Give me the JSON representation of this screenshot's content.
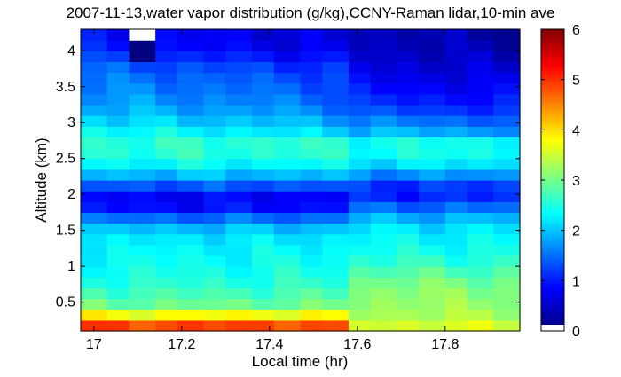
{
  "chart_data": {
    "type": "heatmap",
    "title": "2007-11-13,water vapor distribution (g/kg),CCNY-Raman lidar,10-min ave",
    "xlabel": "Local time (hr)",
    "ylabel": "Altitude (km)",
    "xlim": [
      16.97,
      17.97
    ],
    "ylim": [
      0.1,
      4.3
    ],
    "x_ticks": [
      "17",
      "17.2",
      "17.4",
      "17.6",
      "17.8"
    ],
    "x_tick_values": [
      17,
      17.2,
      17.4,
      17.6,
      17.8
    ],
    "y_ticks": [
      "0.5",
      "1",
      "1.5",
      "2",
      "2.5",
      "3",
      "3.5",
      "4"
    ],
    "y_tick_values": [
      0.5,
      1,
      1.5,
      2,
      2.5,
      3,
      3.5,
      4
    ],
    "colorbar": {
      "min": 0,
      "max": 6,
      "ticks": [
        "0",
        "1",
        "2",
        "3",
        "4",
        "5",
        "6"
      ],
      "tick_values": [
        0,
        1,
        2,
        3,
        4,
        5,
        6
      ],
      "colormap": "jet",
      "missing_color": "#ffffff"
    },
    "x_columns_hr": [
      16.97,
      17.03,
      17.08,
      17.14,
      17.19,
      17.25,
      17.3,
      17.36,
      17.41,
      17.47,
      17.52,
      17.58,
      17.63,
      17.69,
      17.74,
      17.8,
      17.85,
      17.91,
      17.97
    ],
    "y_rows_km": [
      0.1,
      0.25,
      0.4,
      0.55,
      0.7,
      0.85,
      1.0,
      1.15,
      1.3,
      1.45,
      1.6,
      1.75,
      1.9,
      2.05,
      2.2,
      2.35,
      2.5,
      2.65,
      2.8,
      2.95,
      3.1,
      3.25,
      3.4,
      3.55,
      3.7,
      3.85,
      4.0,
      4.15,
      4.3
    ],
    "profiles_g_per_kg": {
      "altitude_km": [
        0.1,
        0.25,
        0.4,
        0.55,
        0.7,
        0.85,
        1.0,
        1.15,
        1.3,
        1.45,
        1.6,
        1.75,
        1.9,
        2.05,
        2.2,
        2.35,
        2.5,
        2.65,
        2.8,
        2.95,
        3.1,
        3.25,
        3.4,
        3.55,
        3.7,
        3.85,
        4.0,
        4.15
      ],
      "time_before_17_57": [
        5.3,
        4.4,
        3.0,
        2.75,
        2.55,
        2.4,
        2.35,
        2.25,
        2.2,
        2.05,
        1.7,
        1.05,
        0.55,
        0.9,
        1.6,
        2.1,
        2.4,
        2.55,
        2.45,
        2.2,
        1.9,
        1.75,
        1.6,
        1.5,
        1.4,
        1.2,
        0.9,
        0.8
      ],
      "time_after_17_57": [
        3.7,
        3.3,
        3.2,
        3.1,
        3.05,
        2.85,
        2.6,
        2.4,
        2.3,
        2.2,
        2.0,
        1.6,
        1.1,
        0.8,
        1.3,
        1.9,
        2.3,
        2.4,
        2.3,
        2.0,
        1.6,
        1.35,
        1.2,
        1.05,
        0.95,
        0.85,
        0.75,
        0.7
      ]
    },
    "missing_cells": [
      {
        "time_hr": 17.11,
        "altitude_km": 4.22
      }
    ]
  }
}
